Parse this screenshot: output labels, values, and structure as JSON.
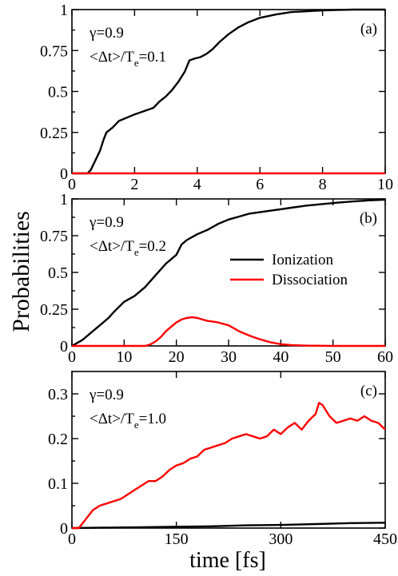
{
  "figure": {
    "ylabel": "Probabilities",
    "xlabel": "time [fs]"
  },
  "colors": {
    "ionization": "#000000",
    "dissociation": "#ff0000",
    "frame": "#000000"
  },
  "legend": {
    "panel": 1,
    "placement": "right-middle",
    "entries": [
      {
        "name": "Ionization",
        "color": "#000000"
      },
      {
        "name": "Dissociation",
        "color": "#ff0000"
      }
    ]
  },
  "chart_data": [
    {
      "type": "line",
      "panel_label": "(a)",
      "gamma": "γ=0.9",
      "ratio_main": "<Δt>/T",
      "ratio_sub": "e",
      "ratio_value": "=0.1",
      "xlim": [
        0,
        10
      ],
      "ylim": [
        0,
        1
      ],
      "xticks": [
        0,
        2,
        4,
        6,
        8,
        10
      ],
      "yticks": [
        0,
        0.25,
        0.5,
        0.75,
        1
      ],
      "ytick_labels": [
        "0",
        "0.25",
        "0.5",
        "0.75",
        "1"
      ],
      "series": [
        {
          "name": "Ionization",
          "color": "#000000",
          "x": [
            0,
            0.5,
            0.6,
            0.75,
            0.9,
            1.0,
            1.1,
            1.3,
            1.5,
            1.75,
            2.0,
            2.3,
            2.6,
            2.8,
            3.0,
            3.2,
            3.4,
            3.6,
            3.75,
            3.9,
            4.1,
            4.3,
            4.5,
            4.7,
            5.0,
            5.3,
            5.6,
            6.0,
            6.5,
            7.0,
            7.5,
            8.0,
            8.5,
            9.0,
            9.5,
            10.0
          ],
          "y": [
            0,
            0,
            0.02,
            0.08,
            0.14,
            0.2,
            0.25,
            0.28,
            0.32,
            0.34,
            0.36,
            0.38,
            0.4,
            0.44,
            0.47,
            0.51,
            0.56,
            0.62,
            0.69,
            0.7,
            0.71,
            0.73,
            0.76,
            0.8,
            0.85,
            0.89,
            0.92,
            0.95,
            0.97,
            0.985,
            0.99,
            0.995,
            0.998,
            1.0,
            1.0,
            1.0
          ]
        },
        {
          "name": "Dissociation",
          "color": "#ff0000",
          "x": [
            0,
            10
          ],
          "y": [
            0,
            0
          ]
        }
      ]
    },
    {
      "type": "line",
      "panel_label": "(b)",
      "gamma": "γ=0.9",
      "ratio_main": "<Δt>/T",
      "ratio_sub": "e",
      "ratio_value": "=0.2",
      "xlim": [
        0,
        60
      ],
      "ylim": [
        0,
        1
      ],
      "xticks": [
        0,
        10,
        20,
        30,
        40,
        50,
        60
      ],
      "yticks": [
        0,
        0.25,
        0.5,
        0.75,
        1
      ],
      "ytick_labels": [
        "0",
        "0.25",
        "0.5",
        "0.75",
        "1"
      ],
      "series": [
        {
          "name": "Ionization",
          "color": "#000000",
          "x": [
            0,
            1,
            2,
            3,
            4,
            5,
            6,
            7,
            8,
            10,
            12,
            14,
            16,
            18,
            20,
            21,
            22,
            23,
            24,
            26,
            28,
            30,
            32,
            34,
            36,
            38,
            40,
            42,
            45,
            48,
            51,
            54,
            57,
            60
          ],
          "y": [
            0,
            0.02,
            0.04,
            0.07,
            0.1,
            0.13,
            0.16,
            0.19,
            0.23,
            0.3,
            0.34,
            0.4,
            0.48,
            0.56,
            0.62,
            0.69,
            0.72,
            0.74,
            0.76,
            0.79,
            0.83,
            0.86,
            0.88,
            0.9,
            0.91,
            0.92,
            0.93,
            0.94,
            0.955,
            0.965,
            0.975,
            0.983,
            0.99,
            0.995
          ]
        },
        {
          "name": "Dissociation",
          "color": "#ff0000",
          "x": [
            0,
            14,
            15,
            16,
            17,
            18,
            19,
            20,
            21,
            22,
            23,
            24,
            25,
            26,
            27,
            28,
            30,
            32,
            34,
            36,
            38,
            40,
            42,
            45,
            50,
            60
          ],
          "y": [
            0,
            0,
            0.01,
            0.03,
            0.06,
            0.1,
            0.13,
            0.16,
            0.18,
            0.19,
            0.195,
            0.19,
            0.18,
            0.17,
            0.165,
            0.16,
            0.14,
            0.1,
            0.07,
            0.045,
            0.025,
            0.012,
            0.006,
            0.002,
            0,
            0
          ]
        }
      ]
    },
    {
      "type": "line",
      "panel_label": "(c)",
      "gamma": "γ=0.9",
      "ratio_main": "<Δt>/T",
      "ratio_sub": "e",
      "ratio_value": "=1.0",
      "xlim": [
        0,
        450
      ],
      "ylim": [
        0,
        0.35
      ],
      "xticks": [
        0,
        150,
        300,
        450
      ],
      "yticks": [
        0,
        0.1,
        0.2,
        0.3
      ],
      "ytick_labels": [
        "0",
        "0.1",
        "0.2",
        "0.3"
      ],
      "series": [
        {
          "name": "Ionization",
          "color": "#000000",
          "x": [
            0,
            50,
            100,
            150,
            200,
            250,
            300,
            350,
            400,
            450
          ],
          "y": [
            0,
            0.001,
            0.002,
            0.003,
            0.004,
            0.006,
            0.007,
            0.009,
            0.011,
            0.012
          ]
        },
        {
          "name": "Dissociation",
          "color": "#ff0000",
          "x": [
            0,
            10,
            15,
            20,
            25,
            30,
            40,
            50,
            60,
            70,
            80,
            90,
            100,
            110,
            120,
            130,
            140,
            150,
            160,
            170,
            180,
            190,
            200,
            210,
            220,
            230,
            240,
            250,
            260,
            270,
            280,
            290,
            300,
            310,
            320,
            330,
            340,
            350,
            355,
            360,
            370,
            380,
            390,
            400,
            410,
            420,
            430,
            440,
            450
          ],
          "y": [
            0,
            0,
            0.01,
            0.02,
            0.03,
            0.04,
            0.05,
            0.055,
            0.06,
            0.065,
            0.075,
            0.085,
            0.095,
            0.105,
            0.105,
            0.115,
            0.13,
            0.14,
            0.145,
            0.155,
            0.16,
            0.175,
            0.18,
            0.185,
            0.19,
            0.2,
            0.205,
            0.21,
            0.205,
            0.2,
            0.205,
            0.22,
            0.21,
            0.225,
            0.235,
            0.22,
            0.24,
            0.255,
            0.28,
            0.275,
            0.25,
            0.235,
            0.24,
            0.245,
            0.24,
            0.25,
            0.24,
            0.235,
            0.22
          ]
        }
      ]
    }
  ]
}
